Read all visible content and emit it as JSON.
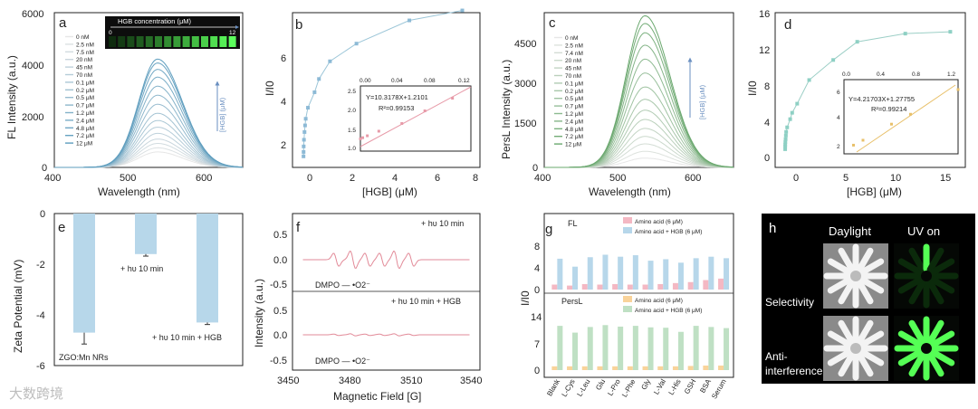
{
  "colors": {
    "fl": "#5d9dbe",
    "persl": "#6aa86e",
    "pink": "#f4b8c3",
    "blue": "#b7d7ea",
    "orange": "#f9d39a",
    "green": "#bfe0c4",
    "linefit_b": "#e79aa8",
    "linefit_d": "#e8c06a",
    "epr": "#e28a98"
  },
  "panels": {
    "a": {
      "label": "a",
      "xlabel": "Wavelength (nm)",
      "ylabel": "FL Intensity (a.u.)",
      "xticks": [
        "400",
        "500",
        "600"
      ],
      "yticks": [
        "0",
        "2000",
        "4000",
        "6000"
      ],
      "legend": [
        "0 nM",
        "2.5 nM",
        "7.5 nM",
        "20 nM",
        "45 nM",
        "70 nM",
        "0.1 μM",
        "0.2 μM",
        "0.5 μM",
        "0.7 μM",
        "1.2 μM",
        "2.4 μM",
        "4.8 μM",
        "7.2 μM",
        "12 μM"
      ],
      "arrow_text": "[HGB] (μM)",
      "inset_title": "HGB concentration (μM)",
      "inset_min": "0",
      "inset_max": "12"
    },
    "b": {
      "label": "b",
      "xlabel": "[HGB] (μM)",
      "ylabel": "I/I0",
      "xticks": [
        "0",
        "2",
        "4",
        "6",
        "8"
      ],
      "yticks": [
        "2",
        "4",
        "6"
      ],
      "inset_xticks": [
        "0.00",
        "0.04",
        "0.08",
        "0.12"
      ],
      "inset_yticks": [
        "1.0",
        "1.5",
        "2.0",
        "2.5"
      ],
      "equation": "Y=10.3178X+1.2101",
      "r2": "R²=0.99153"
    },
    "c": {
      "label": "c",
      "xlabel": "Wavelength (nm)",
      "ylabel": "PersL Intensity (a.u.)",
      "xticks": [
        "400",
        "500",
        "600"
      ],
      "yticks": [
        "0",
        "1500",
        "3000",
        "4500"
      ],
      "legend": [
        "0 nM",
        "2.5 nM",
        "7.4 nM",
        "20 nM",
        "45 nM",
        "70 nM",
        "0.1 μM",
        "0.2 μM",
        "0.5 μM",
        "0.7 μM",
        "1.2 μM",
        "2.4 μM",
        "4.8 μM",
        "7.2 μM",
        "12 μM"
      ],
      "arrow_text": "[HGB] (μM)"
    },
    "d": {
      "label": "d",
      "xlabel": "[HGB] (μM)",
      "ylabel": "I/I0",
      "xticks": [
        "0",
        "5",
        "10",
        "15"
      ],
      "yticks": [
        "0",
        "4",
        "8",
        "12",
        "16"
      ],
      "inset_xticks": [
        "0.0",
        "0.4",
        "0.8",
        "1.2"
      ],
      "inset_yticks": [
        "2",
        "4",
        "6"
      ],
      "equation": "Y=4.21703X+1.27755",
      "r2": "R²=0.99214"
    },
    "e": {
      "label": "e",
      "ylabel": "Zeta Potential (mV)",
      "yticks": [
        "0",
        "-2",
        "-4",
        "-6"
      ],
      "bar_labels": [
        "ZGO:Mn NRs",
        "+ hυ 10 min",
        "+ hυ 10 min + HGB"
      ]
    },
    "f": {
      "label": "f",
      "xlabel": "Magnetic Field [G]",
      "ylabel": "Intensity (a.u.)",
      "xticks": [
        "3450",
        "3480",
        "3510",
        "3540"
      ],
      "yticks": [
        "0.5",
        "0.0",
        "-0.5"
      ],
      "top_label": "+ hυ 10 min",
      "bottom_label": "+ hυ 10 min + HGB",
      "dmpo": "DMPO — •O2⁻"
    },
    "g": {
      "label": "g",
      "ylabel": "I/I0",
      "fl_tag": "FL",
      "persl_tag": "PersL",
      "fl_yticks": [
        "0",
        "4",
        "8"
      ],
      "persl_yticks": [
        "0",
        "7",
        "14"
      ],
      "legend_fl": [
        "Amino acid (6 μM)",
        "Amino acid + HGB (6 μM)"
      ],
      "legend_persl": [
        "Amino acid (6 μM)",
        "Amino acid + HGB (6 μM)"
      ]
    },
    "h": {
      "label": "h",
      "col1": "Daylight",
      "col2": "UV on",
      "row1": "Selectivity",
      "row2a": "Anti-",
      "row2b": "interference"
    }
  },
  "watermark": "大数跨境",
  "chart_data": [
    {
      "panel": "a",
      "type": "line",
      "xlim": [
        400,
        650
      ],
      "ylim": [
        0,
        6000
      ],
      "series_peak_nm": 537,
      "series": [
        {
          "name": "0 nM",
          "values": [
            600
          ]
        },
        {
          "name": "2.5 nM",
          "values": [
            760
          ]
        },
        {
          "name": "7.5 nM",
          "values": [
            930
          ]
        },
        {
          "name": "20 nM",
          "values": [
            1100
          ]
        },
        {
          "name": "45 nM",
          "values": [
            1320
          ]
        },
        {
          "name": "70 nM",
          "values": [
            1560
          ]
        },
        {
          "name": "0.1 μM",
          "values": [
            1820
          ]
        },
        {
          "name": "0.2 μM",
          "values": [
            2100
          ]
        },
        {
          "name": "0.5 μM",
          "values": [
            2450
          ]
        },
        {
          "name": "0.7 μM",
          "values": [
            2800
          ]
        },
        {
          "name": "1.2 μM",
          "values": [
            3150
          ]
        },
        {
          "name": "2.4 μM",
          "values": [
            3500
          ]
        },
        {
          "name": "4.8 μM",
          "values": [
            3800
          ]
        },
        {
          "name": "7.2 μM",
          "values": [
            4050
          ]
        },
        {
          "name": "12 μM",
          "values": [
            4200
          ]
        }
      ]
    },
    {
      "panel": "b",
      "type": "scatter",
      "xlim": [
        -0.5,
        8
      ],
      "ylim": [
        0.5,
        7.5
      ],
      "x": [
        0,
        0.0025,
        0.0075,
        0.02,
        0.045,
        0.07,
        0.1,
        0.2,
        0.5,
        0.7,
        1.2,
        2.4,
        4.8,
        7.2
      ],
      "y": [
        1.0,
        1.2,
        1.45,
        1.75,
        2.1,
        2.4,
        2.7,
        3.2,
        3.9,
        4.5,
        5.3,
        6.1,
        7.15,
        7.6
      ],
      "inset": {
        "x": [
          0,
          0.0025,
          0.0075,
          0.02,
          0.045,
          0.07,
          0.1
        ],
        "y": [
          1.22,
          1.25,
          1.3,
          1.42,
          1.62,
          1.95,
          2.28
        ],
        "xlim": [
          0,
          0.12
        ],
        "ylim": [
          0.9,
          2.6
        ]
      }
    },
    {
      "panel": "c",
      "type": "line",
      "xlim": [
        400,
        650
      ],
      "ylim": [
        0,
        5000
      ],
      "series_peak_nm": 533,
      "series": [
        {
          "name": "0 nM",
          "values": [
            300
          ]
        },
        {
          "name": "2.5 nM",
          "values": [
            520
          ]
        },
        {
          "name": "7.4 nM",
          "values": [
            760
          ]
        },
        {
          "name": "20 nM",
          "values": [
            1000
          ]
        },
        {
          "name": "45 nM",
          "values": [
            1260
          ]
        },
        {
          "name": "70 nM",
          "values": [
            1550
          ]
        },
        {
          "name": "0.1 μM",
          "values": [
            1850
          ]
        },
        {
          "name": "0.2 μM",
          "values": [
            2200
          ]
        },
        {
          "name": "0.5 μM",
          "values": [
            2600
          ]
        },
        {
          "name": "0.7 μM",
          "values": [
            3050
          ]
        },
        {
          "name": "1.2 μM",
          "values": [
            3500
          ]
        },
        {
          "name": "2.4 μM",
          "values": [
            3950
          ]
        },
        {
          "name": "4.8 μM",
          "values": [
            4350
          ]
        },
        {
          "name": "7.2 μM",
          "values": [
            4650
          ]
        },
        {
          "name": "12 μM",
          "values": [
            4900
          ]
        }
      ]
    },
    {
      "panel": "d",
      "type": "scatter",
      "xlim": [
        -1,
        18
      ],
      "ylim": [
        -1,
        16
      ],
      "x": [
        0,
        0.0025,
        0.0074,
        0.02,
        0.045,
        0.07,
        0.1,
        0.2,
        0.5,
        0.7,
        1.2,
        2.4,
        4.8,
        7.2,
        12,
        16.5
      ],
      "y": [
        1.0,
        1.3,
        1.5,
        1.8,
        2.1,
        2.5,
        2.9,
        3.4,
        4.3,
        5.0,
        6.0,
        8.6,
        10.8,
        12.8,
        13.7,
        13.9
      ],
      "inset": {
        "x": [
          0.1,
          0.2,
          0.5,
          0.7,
          1.2
        ],
        "y": [
          1.7,
          2.1,
          3.4,
          4.2,
          6.2
        ],
        "xlim": [
          0,
          1.2
        ],
        "ylim": [
          1,
          7
        ]
      }
    },
    {
      "panel": "e",
      "type": "bar",
      "ylim": [
        -6,
        0
      ],
      "categories": [
        "ZGO:Mn NRs",
        "+ hυ 10 min",
        "+ hυ 10 min + HGB"
      ],
      "values": [
        -4.7,
        -1.6,
        -4.3
      ],
      "errors": [
        0.45,
        0.08,
        0.08
      ]
    },
    {
      "panel": "f",
      "type": "line",
      "xlim": [
        3450,
        3540
      ],
      "series": [
        {
          "name": "+ hυ 10 min",
          "peaks_G": [
            3471,
            3479,
            3486,
            3493,
            3500,
            3507
          ],
          "amplitude": 0.5
        },
        {
          "name": "+ hυ 10 min + HGB",
          "peaks_G": [
            3471,
            3479,
            3486,
            3493,
            3500,
            3507
          ],
          "amplitude": 0.06
        }
      ]
    },
    {
      "panel": "g",
      "type": "bar",
      "categories": [
        "Blank",
        "L-Cys",
        "L-Leu",
        "Glu",
        "L-Pro",
        "L-Phe",
        "Gly",
        "L-Val",
        "L-His",
        "GSH",
        "BSA",
        "Serum"
      ],
      "series": [
        {
          "name": "FL: Amino acid (6 μM)",
          "values": [
            1.0,
            0.8,
            1.1,
            1.0,
            1.1,
            1.0,
            1.0,
            1.1,
            1.3,
            1.5,
            1.9,
            2.2
          ]
        },
        {
          "name": "FL: Amino acid + HGB (6 μM)",
          "values": [
            6.2,
            4.6,
            6.5,
            7.0,
            6.6,
            6.9,
            5.8,
            6.1,
            5.4,
            6.3,
            6.6,
            6.3
          ]
        },
        {
          "name": "PersL: Amino acid (6 μM)",
          "values": [
            1.0,
            1.0,
            1.0,
            1.0,
            1.0,
            1.0,
            1.0,
            1.0,
            1.0,
            1.1,
            1.2,
            1.2
          ]
        },
        {
          "name": "PersL: Amino acid + HGB (6 μM)",
          "values": [
            11.8,
            10.0,
            11.5,
            12.0,
            11.6,
            11.8,
            11.4,
            11.3,
            10.2,
            11.8,
            11.5,
            11.2
          ]
        }
      ]
    }
  ]
}
